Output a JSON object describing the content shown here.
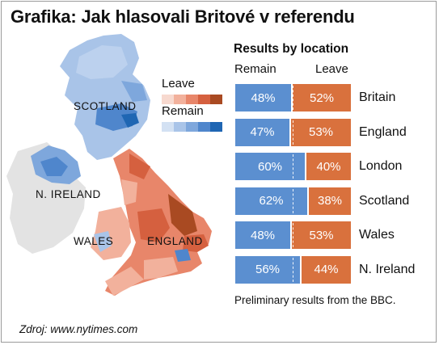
{
  "title": "Grafika: Jak hlasovali Britové v referendu",
  "legend": {
    "leave_label": "Leave",
    "remain_label": "Remain",
    "leave_colors": [
      "#f7d9cf",
      "#f2b19c",
      "#e8866a",
      "#d5603f",
      "#a94a22"
    ],
    "remain_colors": [
      "#d3e1f3",
      "#a9c4e8",
      "#7ea7dc",
      "#4f86cc",
      "#1f66b3"
    ]
  },
  "map_labels": {
    "scotland": "SCOTLAND",
    "n_ireland": "N. IRELAND",
    "wales": "WALES",
    "england": "ENGLAND"
  },
  "colors": {
    "remain": "#5b8fd0",
    "leave": "#d9713d"
  },
  "chart_data": {
    "type": "bar",
    "title": "Results by location",
    "series_labels": [
      "Remain",
      "Leave"
    ],
    "categories": [
      "Britain",
      "England",
      "London",
      "Scotland",
      "Wales",
      "N. Ireland"
    ],
    "remain": [
      48,
      47,
      60,
      62,
      48,
      56
    ],
    "leave": [
      52,
      53,
      40,
      38,
      53,
      44
    ],
    "remain_labels": [
      "48%",
      "47%",
      "60%",
      "62%",
      "48%",
      "56%"
    ],
    "leave_labels": [
      "52%",
      "53%",
      "40%",
      "38%",
      "53%",
      "44%"
    ]
  },
  "note": "Preliminary results from the BBC.",
  "source": "Zdroj: www.nytimes.com"
}
